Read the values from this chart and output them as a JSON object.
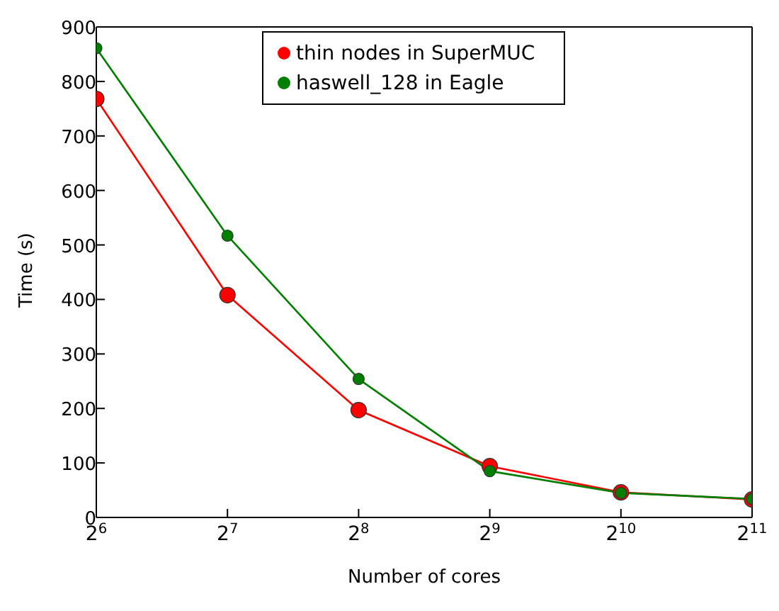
{
  "chart_data": {
    "type": "line",
    "xlabel": "Number of cores",
    "ylabel": "Time (s)",
    "x": [
      64,
      128,
      256,
      512,
      1024,
      2048
    ],
    "series": [
      {
        "name": "thin nodes in SuperMUC",
        "color": "#ff0000",
        "values": [
          768,
          408,
          197,
          94,
          46,
          33
        ]
      },
      {
        "name": "haswell_128 in Eagle",
        "color": "#007f00",
        "values": [
          861,
          517,
          254,
          85,
          45,
          34
        ]
      }
    ],
    "log": "x",
    "xlim": [
      64,
      2048
    ],
    "xticks": [
      {
        "value": 64,
        "label": "2$^{6}$"
      },
      {
        "value": 128,
        "label": "2$^{7}$"
      },
      {
        "value": 256,
        "label": "2$^{8}$"
      },
      {
        "value": 512,
        "label": "2$^{9}$"
      },
      {
        "value": 1024,
        "label": "2$^{10}$"
      },
      {
        "value": 2048,
        "label": "2$^{11}$"
      }
    ],
    "ylim": [
      0,
      900
    ],
    "yticks": [
      0,
      100,
      200,
      300,
      400,
      500,
      600,
      700,
      800,
      900
    ],
    "grid": false,
    "legend": "top",
    "marker": "circle",
    "line_style": "solid"
  }
}
